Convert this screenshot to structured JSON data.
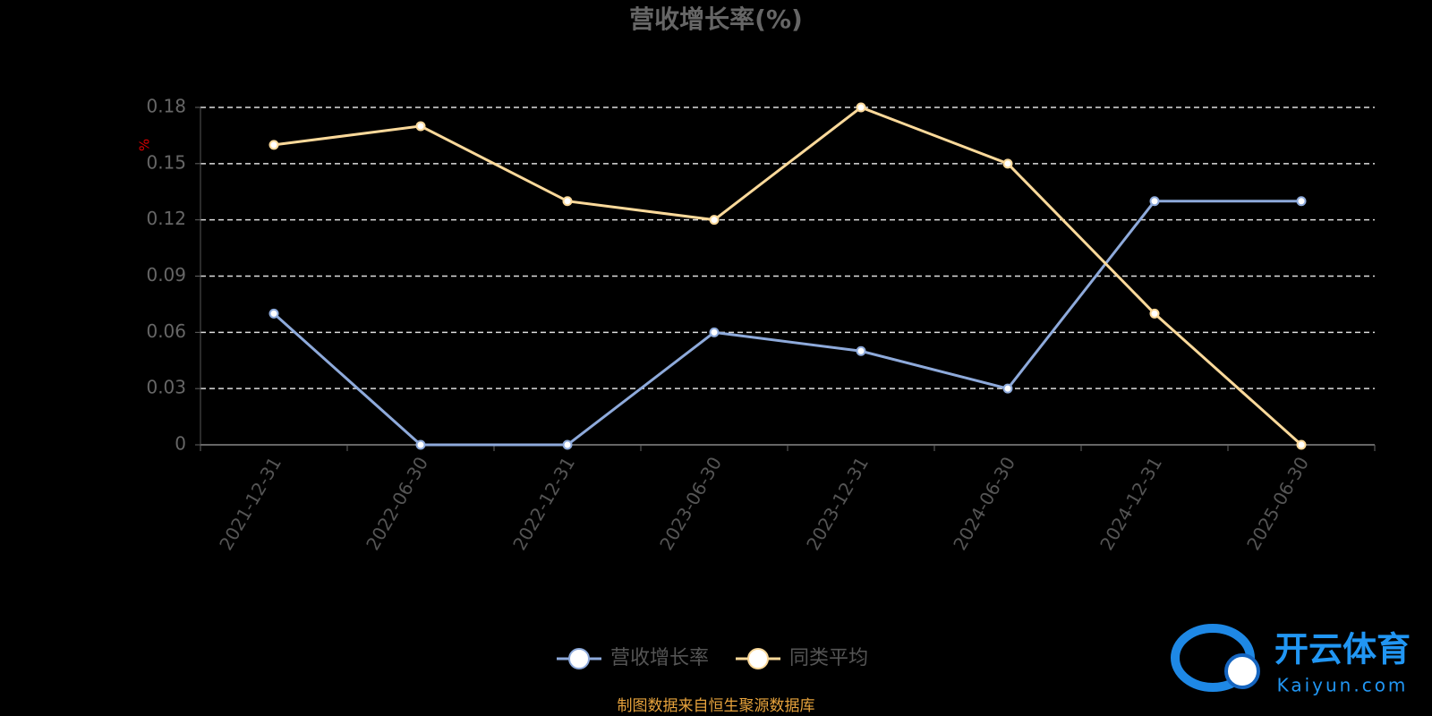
{
  "chart_data": {
    "type": "line",
    "title": "营收增长率(%)",
    "y_label": "%",
    "categories": [
      "2021-12-31",
      "2022-06-30",
      "2022-12-31",
      "2023-06-30",
      "2023-12-31",
      "2024-06-30",
      "2024-12-31",
      "2025-06-30"
    ],
    "series": [
      {
        "name": "营收增长率",
        "color": "#8eaadb",
        "values": [
          0.07,
          0,
          0,
          0.06,
          0.05,
          0.03,
          0.13,
          0.13
        ]
      },
      {
        "name": "同类平均",
        "color": "#fbd99a",
        "values": [
          0.16,
          0.17,
          0.13,
          0.12,
          0.18,
          0.15,
          0.07,
          0
        ]
      }
    ],
    "ylim": [
      0,
      0.18
    ],
    "yticks": [
      0,
      0.03,
      0.06,
      0.09,
      0.12,
      0.15,
      0.18
    ],
    "grid": true,
    "legend": "bottom",
    "source": "制图数据来自恒生聚源数据库"
  },
  "watermark": {
    "brand": "开云体育",
    "site": "Kaiyun.com"
  }
}
